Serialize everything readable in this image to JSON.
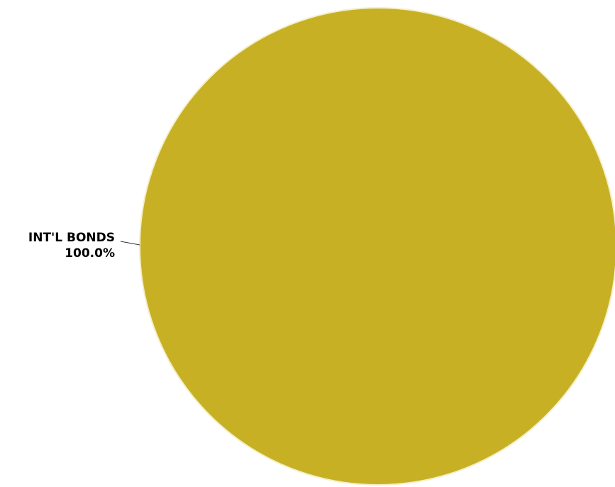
{
  "chart_data": {
    "type": "pie",
    "title": "",
    "slices": [
      {
        "label": "INT'L BONDS",
        "value": 100.0,
        "percent_label": "100.0%",
        "color": "#C8B025"
      }
    ],
    "legend": "none",
    "label_placement": "left-with-leader-line"
  }
}
